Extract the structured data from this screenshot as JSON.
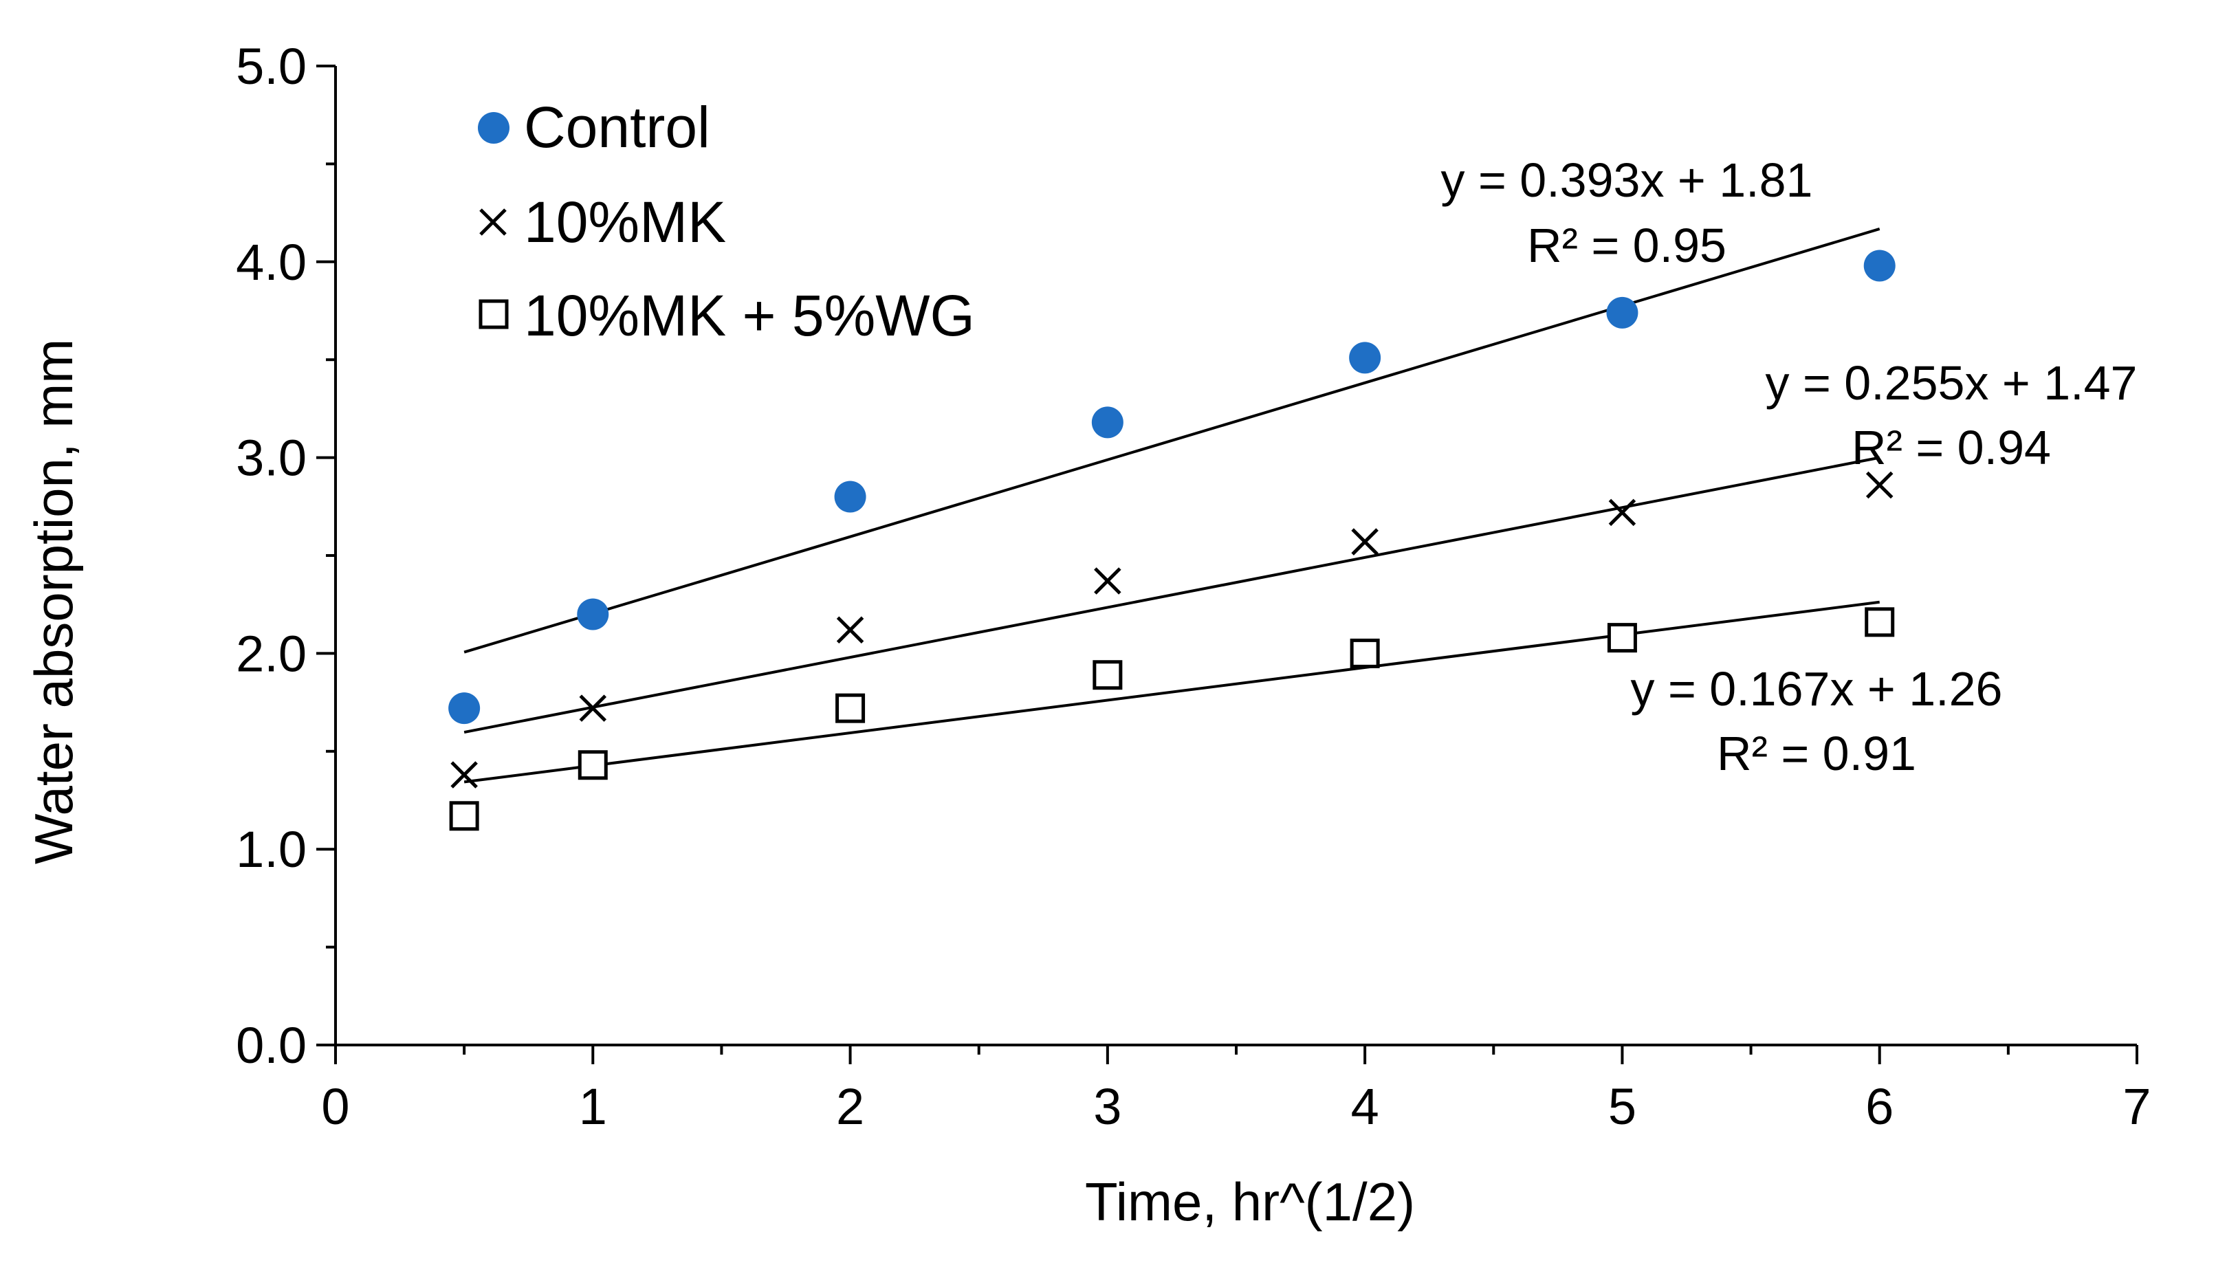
{
  "chart_data": {
    "type": "scatter",
    "title": "",
    "xlabel": "Time, hr^(1/2)",
    "ylabel": "Water absorption, mm",
    "xlim": [
      0,
      7
    ],
    "ylim": [
      0,
      5
    ],
    "x_ticks": [
      0,
      1,
      2,
      3,
      4,
      5,
      6,
      7
    ],
    "x_tick_labels": [
      "0",
      "1",
      "2",
      "3",
      "4",
      "5",
      "6",
      "7"
    ],
    "y_ticks": [
      0,
      1,
      2,
      3,
      4,
      5
    ],
    "y_tick_labels": [
      "0.0",
      "1.0",
      "2.0",
      "3.0",
      "4.0",
      "5.0"
    ],
    "grid": false,
    "legend_position": "top-left",
    "x": [
      0.5,
      1,
      2,
      3,
      4,
      5,
      6
    ],
    "series": [
      {
        "name": "Control",
        "marker": "circle",
        "color": "#1f6fc5",
        "values": [
          1.72,
          2.2,
          2.8,
          3.18,
          3.51,
          3.74,
          3.98
        ],
        "trendline": {
          "slope": 0.393,
          "intercept": 1.81,
          "x_range": [
            0.5,
            6
          ],
          "equation": "y = 0.393x + 1.81",
          "r2": "R² = 0.95"
        }
      },
      {
        "name": "10%MK",
        "marker": "cross",
        "color": "#000000",
        "values": [
          1.38,
          1.72,
          2.12,
          2.37,
          2.57,
          2.72,
          2.86
        ],
        "trendline": {
          "slope": 0.255,
          "intercept": 1.47,
          "x_range": [
            0.5,
            6
          ],
          "equation": "y = 0.255x + 1.47",
          "r2": "R² = 0.94"
        }
      },
      {
        "name": "10%MK + 5%WG",
        "marker": "square",
        "color": "#000000",
        "values": [
          1.17,
          1.43,
          1.72,
          1.89,
          2.0,
          2.08,
          2.16
        ],
        "trendline": {
          "slope": 0.167,
          "intercept": 1.26,
          "x_range": [
            0.5,
            6
          ],
          "equation": "y = 0.167x + 1.26",
          "r2": "R² = 0.91"
        }
      }
    ]
  }
}
